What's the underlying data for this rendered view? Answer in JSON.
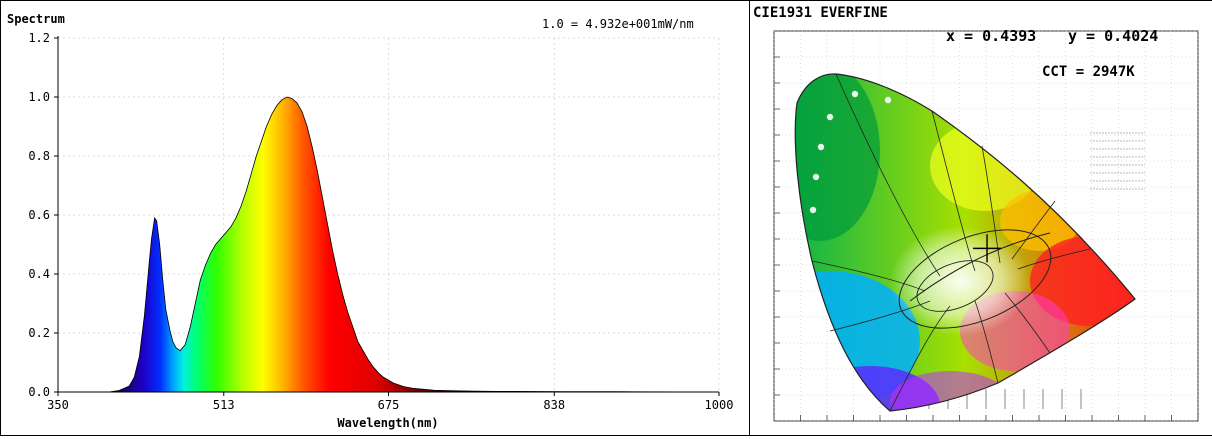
{
  "chart_data": [
    {
      "type": "area",
      "title": "Spectrum",
      "scale_note": "1.0 = 4.932e+001mW/nm",
      "xlabel": "Wavelength(nm)",
      "ylabel": "",
      "xlim": [
        350,
        1000
      ],
      "ylim": [
        0,
        1.2
      ],
      "x_ticks": [
        350,
        513,
        675,
        838,
        1000
      ],
      "y_ticks": [
        "0.0",
        "0.2",
        "0.4",
        "0.6",
        "0.8",
        "1.0",
        "1.2"
      ],
      "grid": true,
      "x": [
        350,
        400,
        410,
        420,
        425,
        430,
        435,
        440,
        442,
        445,
        447,
        450,
        453,
        456,
        460,
        463,
        466,
        470,
        475,
        480,
        485,
        490,
        495,
        500,
        505,
        510,
        515,
        520,
        525,
        530,
        535,
        540,
        545,
        550,
        555,
        560,
        565,
        570,
        575,
        580,
        585,
        590,
        595,
        600,
        605,
        610,
        615,
        620,
        625,
        630,
        635,
        640,
        645,
        650,
        655,
        660,
        665,
        670,
        680,
        690,
        700,
        720,
        740,
        760,
        780,
        800,
        850,
        900,
        1000
      ],
      "values": [
        0.0,
        0.0,
        0.005,
        0.02,
        0.05,
        0.12,
        0.26,
        0.45,
        0.52,
        0.59,
        0.58,
        0.5,
        0.38,
        0.28,
        0.21,
        0.17,
        0.15,
        0.14,
        0.16,
        0.22,
        0.3,
        0.38,
        0.43,
        0.47,
        0.5,
        0.52,
        0.54,
        0.56,
        0.59,
        0.63,
        0.68,
        0.74,
        0.8,
        0.85,
        0.9,
        0.94,
        0.97,
        0.99,
        1.0,
        0.995,
        0.98,
        0.95,
        0.9,
        0.83,
        0.75,
        0.66,
        0.57,
        0.48,
        0.4,
        0.33,
        0.27,
        0.22,
        0.17,
        0.14,
        0.11,
        0.085,
        0.065,
        0.05,
        0.03,
        0.018,
        0.012,
        0.006,
        0.004,
        0.003,
        0.002,
        0.002,
        0.001,
        0.001,
        0.0
      ]
    },
    {
      "type": "scatter",
      "title": "CIE1931 EVERFINE",
      "x_label_text": "x = 0.4393",
      "y_label_text": "y = 0.4024",
      "cct_text": "CCT = 2947K",
      "x": [
        0.4393
      ],
      "y": [
        0.4024
      ],
      "xlim": [
        0,
        0.8
      ],
      "ylim": [
        0,
        0.9
      ]
    }
  ]
}
